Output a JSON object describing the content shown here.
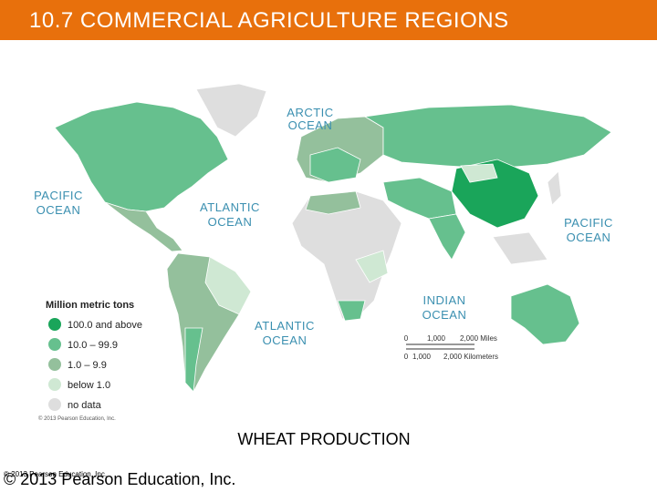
{
  "header": {
    "title": "10.7 COMMERCIAL AGRICULTURE REGIONS"
  },
  "map": {
    "oceans": [
      {
        "lines": [
          "ARCTIC",
          "OCEAN"
        ]
      },
      {
        "lines": [
          "PACIFIC",
          "OCEAN"
        ]
      },
      {
        "lines": [
          "ATLANTIC",
          "OCEAN"
        ]
      },
      {
        "lines": [
          "PACIFIC",
          "OCEAN"
        ]
      },
      {
        "lines": [
          "INDIAN",
          "OCEAN"
        ]
      },
      {
        "lines": [
          "ATLANTIC",
          "OCEAN"
        ]
      }
    ],
    "legend": {
      "title": "Million metric tons",
      "items": [
        {
          "label": "100.0 and above",
          "color": "#1aa55a"
        },
        {
          "label": "10.0 – 99.9",
          "color": "#66c08e"
        },
        {
          "label": "1.0 – 9.9",
          "color": "#94c09c"
        },
        {
          "label": "below 1.0",
          "color": "#cfe8d3"
        },
        {
          "label": "no data",
          "color": "#dedede"
        }
      ]
    },
    "scale": {
      "miles": [
        "0",
        "1,000",
        "2,000 Miles"
      ],
      "kilometers": [
        "0",
        "1,000",
        "2,000 Kilometers"
      ]
    },
    "credit": "© 2013 Pearson Education, Inc."
  },
  "caption": "WHEAT PRODUCTION",
  "footer": {
    "copyright": "© 2013 Pearson Education, Inc.",
    "overlay": "© 2013 Pearson Education, Inc."
  }
}
